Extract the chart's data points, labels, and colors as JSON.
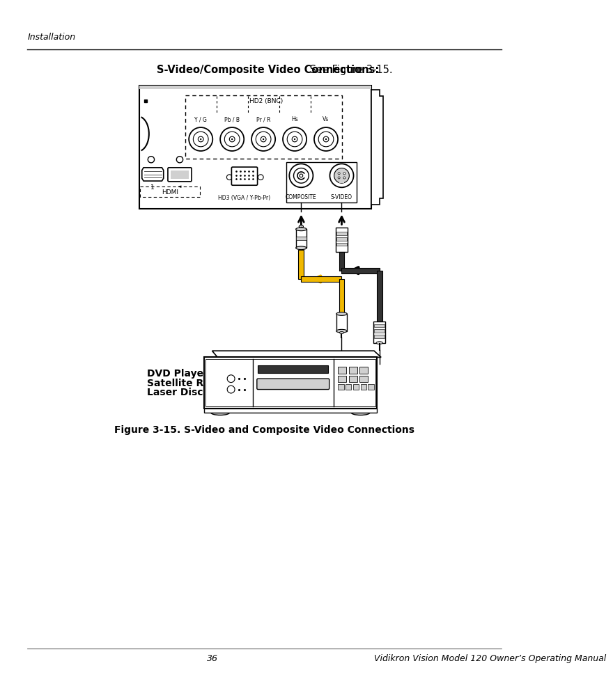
{
  "page_title": "Installation",
  "section_heading_bold": "S-Video/Composite Video Connections:",
  "section_heading_normal": " See Figure 3-15.",
  "figure_caption": "Figure 3-15. S-Video and Composite Video Connections",
  "dvd_label_line1": "DVD Player, VCR,",
  "dvd_label_line2": "Satellite Receiver,",
  "dvd_label_line3": "Laser Disc etc.",
  "footer_page": "36",
  "footer_manual": "Vidikron Vision Model 120 Owner’s Operating Manual",
  "bg_color": "#ffffff",
  "line_color": "#000000",
  "yellow_color": "#f0b800",
  "gray_color": "#888888",
  "light_gray": "#d0d0d0",
  "dark_gray": "#333333",
  "mid_gray": "#aaaaaa"
}
